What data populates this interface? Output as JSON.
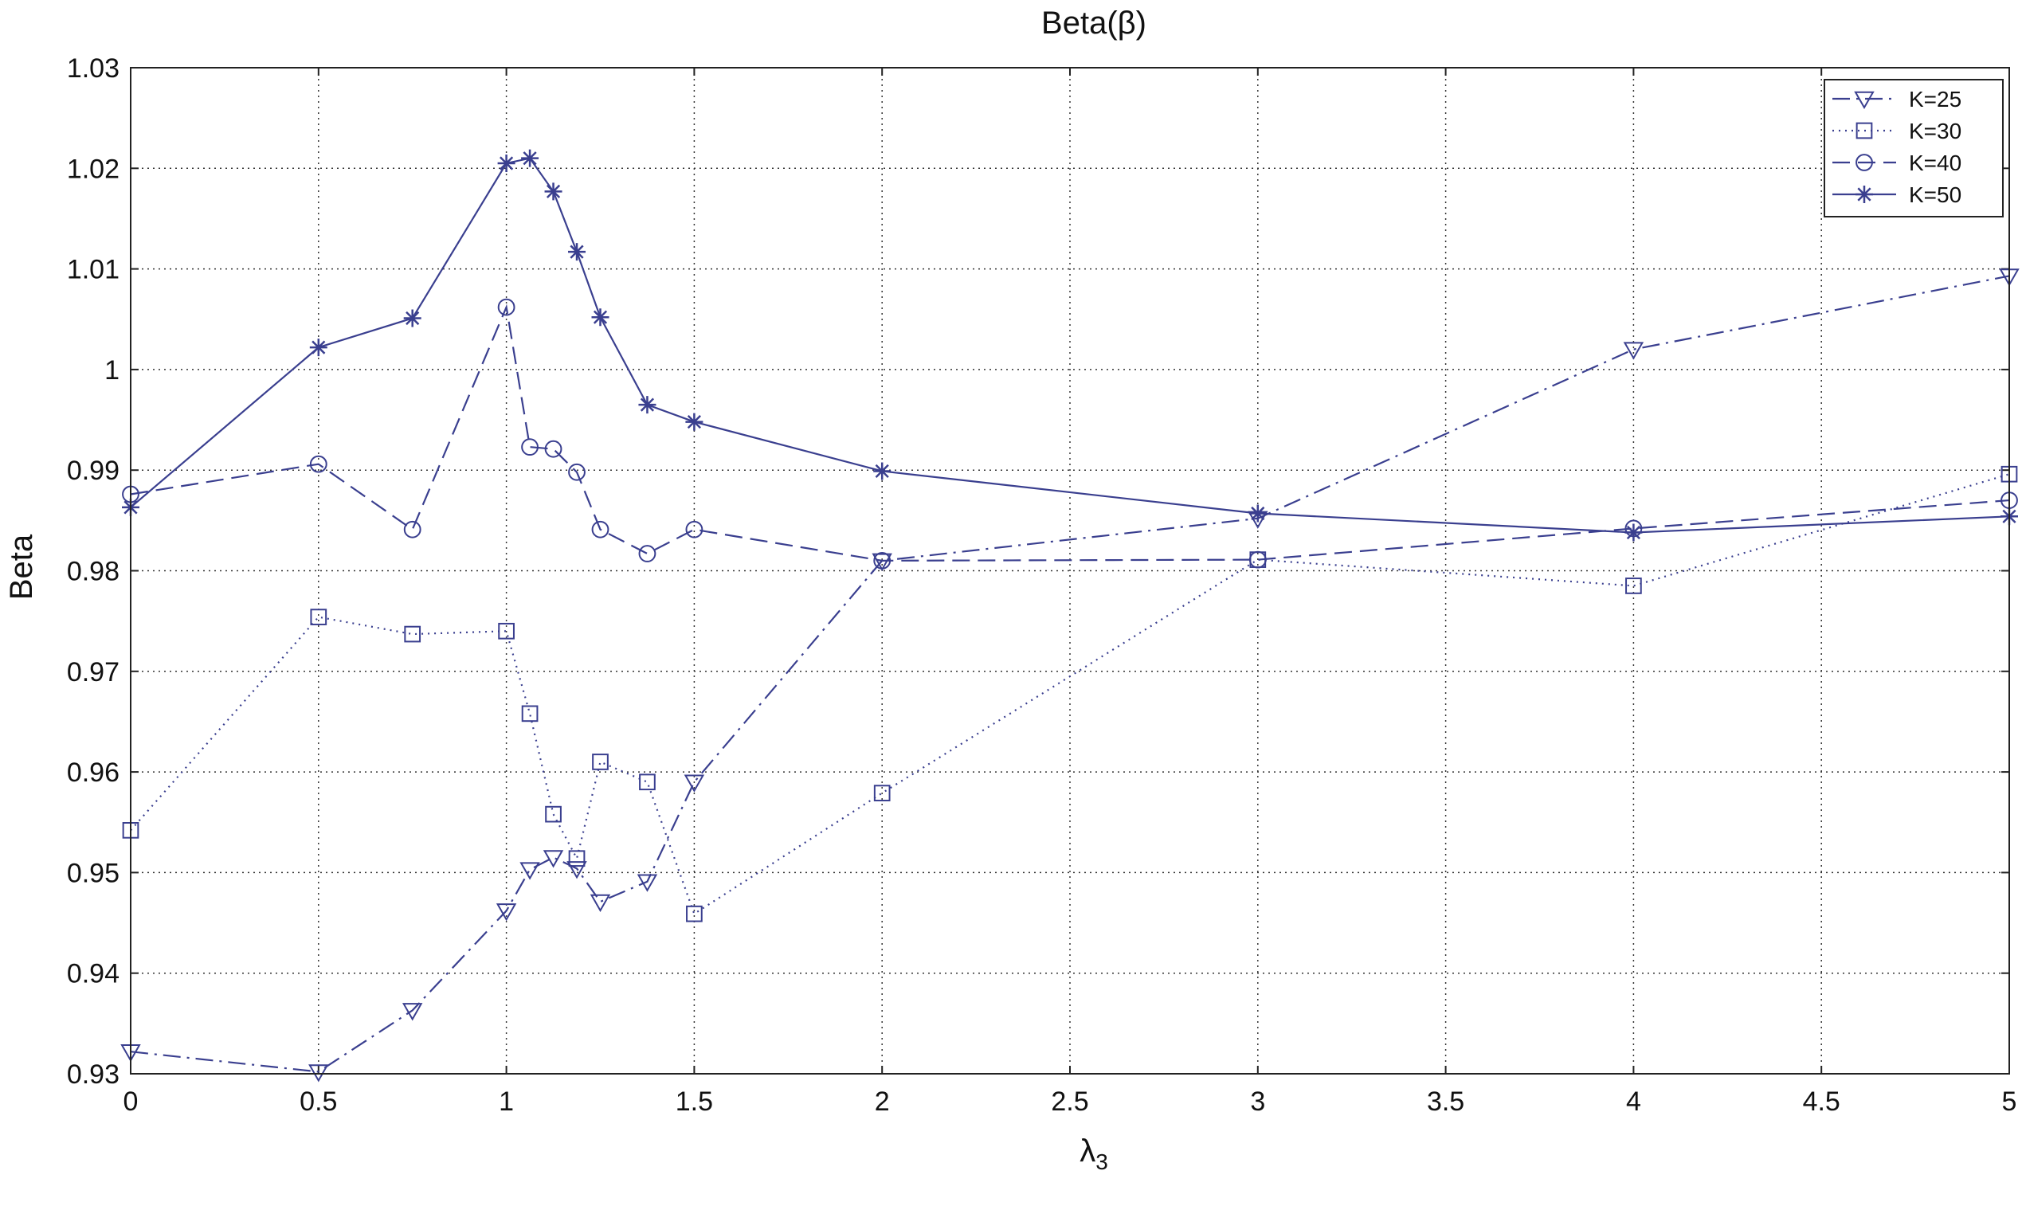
{
  "chart_data": {
    "type": "line",
    "title": "Beta(β)",
    "xlabel": "λ3",
    "ylabel": "Beta",
    "xlim": [
      0,
      5
    ],
    "ylim": [
      0.93,
      1.03
    ],
    "xticks": [
      "0",
      "0.5",
      "1",
      "1.5",
      "2",
      "2.5",
      "3",
      "3.5",
      "4",
      "4.5",
      "5"
    ],
    "yticks": [
      "0.93",
      "0.94",
      "0.95",
      "0.96",
      "0.97",
      "0.98",
      "0.99",
      "1",
      "1.01",
      "1.02",
      "1.03"
    ],
    "grid": true,
    "legend_position": "top-right",
    "color": "#3a3f8f",
    "series": [
      {
        "name": "K=25",
        "marker": "triangle-down",
        "line_style": "dashdot",
        "x": [
          0,
          0.5,
          0.75,
          1,
          1.0625,
          1.125,
          1.1875,
          1.25,
          1.375,
          1.5,
          2,
          3,
          4,
          5
        ],
        "y": [
          0.9322,
          0.9302,
          0.9363,
          0.9462,
          0.9503,
          0.9515,
          0.9504,
          0.9471,
          0.9491,
          0.959,
          0.981,
          0.9852,
          1.002,
          1.0093
        ]
      },
      {
        "name": "K=30",
        "marker": "square",
        "line_style": "dotted",
        "x": [
          0,
          0.5,
          0.75,
          1,
          1.0625,
          1.125,
          1.1875,
          1.25,
          1.375,
          1.5,
          2,
          3,
          4,
          5
        ],
        "y": [
          0.9542,
          0.9754,
          0.9737,
          0.974,
          0.9658,
          0.9558,
          0.9514,
          0.961,
          0.959,
          0.9459,
          0.9579,
          0.9811,
          0.9785,
          0.9896
        ]
      },
      {
        "name": "K=40",
        "marker": "circle",
        "line_style": "dashed",
        "x": [
          0,
          0.5,
          0.75,
          1,
          1.0625,
          1.125,
          1.1875,
          1.25,
          1.375,
          1.5,
          2,
          3,
          4,
          5
        ],
        "y": [
          0.9876,
          0.9906,
          0.9841,
          1.0062,
          0.9923,
          0.9921,
          0.9898,
          0.9841,
          0.9817,
          0.9841,
          0.981,
          0.9811,
          0.9842,
          0.987
        ]
      },
      {
        "name": "K=50",
        "marker": "star",
        "line_style": "solid",
        "x": [
          0,
          0.5,
          0.75,
          1,
          1.0625,
          1.125,
          1.1875,
          1.25,
          1.375,
          1.5,
          2,
          3,
          4,
          5
        ],
        "y": [
          0.9863,
          1.0022,
          1.0051,
          1.0205,
          1.021,
          1.0177,
          1.0117,
          1.0052,
          0.9965,
          0.9948,
          0.9899,
          0.9857,
          0.9838,
          0.9854
        ]
      }
    ]
  }
}
